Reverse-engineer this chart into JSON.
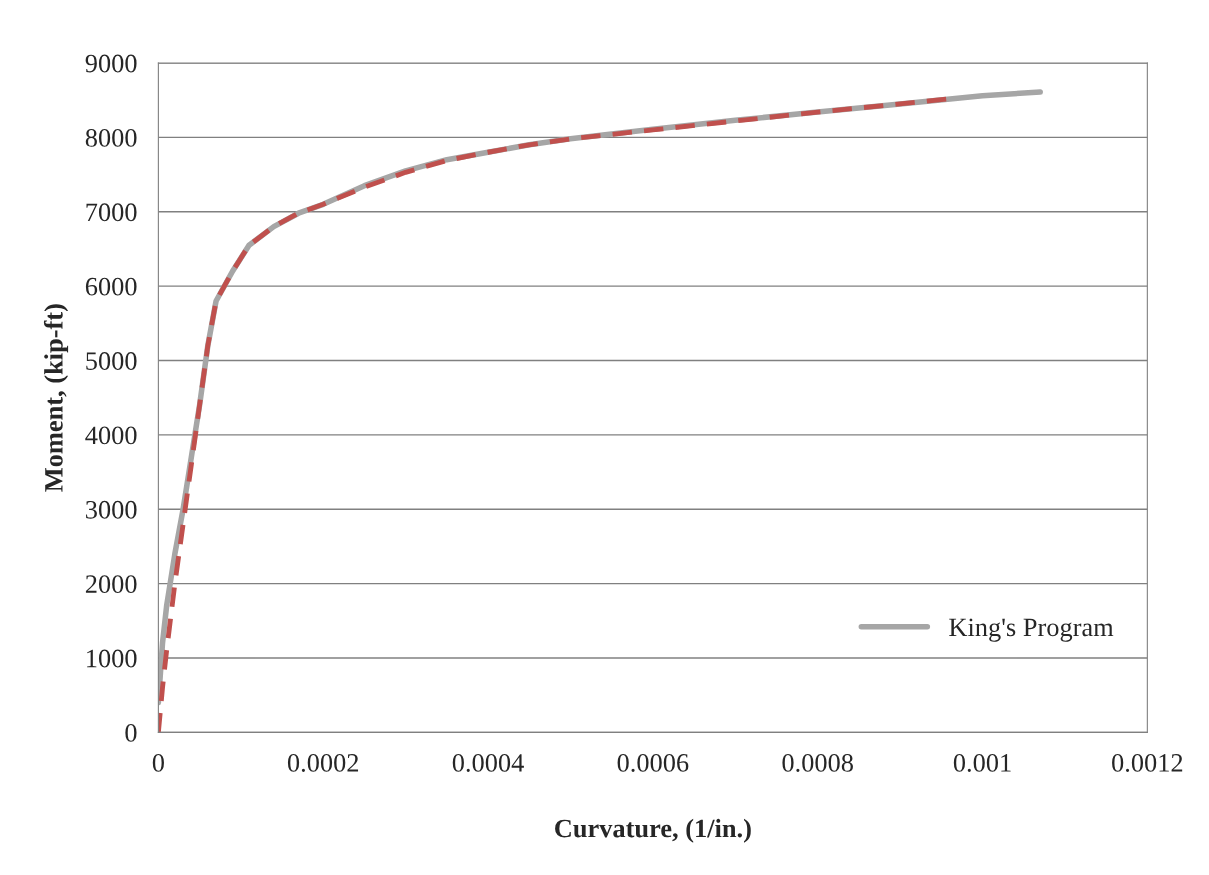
{
  "chart_data": {
    "type": "line",
    "xlabel": "Curvature, (1/in.)",
    "ylabel": "Moment, (kip-ft)",
    "xlim": [
      0,
      0.0012
    ],
    "xticks": [
      0,
      0.0002,
      0.0004,
      0.0006,
      0.0008,
      0.001,
      0.0012
    ],
    "ylim": [
      0,
      9000
    ],
    "yticks": [
      0,
      1000,
      2000,
      3000,
      4000,
      5000,
      6000,
      7000,
      8000,
      9000
    ],
    "grid": "y",
    "legend": "bottom right",
    "series": [
      {
        "name": "King's Program",
        "color": "#a6a6a6",
        "line_style": "solid",
        "x": [
          0,
          5e-06,
          1e-05,
          2e-05,
          3e-05,
          4e-05,
          5e-05,
          6e-05,
          7e-05,
          9e-05,
          0.00011,
          0.00014,
          0.00017,
          0.0002,
          0.00025,
          0.0003,
          0.00035,
          0.0004,
          0.00045,
          0.0005,
          0.0006,
          0.0007,
          0.0008,
          0.0009,
          0.001,
          0.00107
        ],
        "values": [
          400,
          1200,
          1700,
          2400,
          3000,
          3700,
          4400,
          5200,
          5800,
          6200,
          6550,
          6800,
          6980,
          7100,
          7350,
          7550,
          7700,
          7800,
          7900,
          7980,
          8110,
          8230,
          8340,
          8450,
          8560,
          8610
        ]
      },
      {
        "color": "#c0504d",
        "line_style": "dashed",
        "x": [
          0,
          5e-06,
          1e-05,
          2e-05,
          3e-05,
          4e-05,
          5e-05,
          6e-05,
          7e-05,
          9e-05,
          0.00011,
          0.00014,
          0.00017,
          0.0002,
          0.00025,
          0.0003,
          0.00035,
          0.0004,
          0.00045,
          0.0005,
          0.0006,
          0.0007,
          0.0008,
          0.0009,
          0.00096
        ],
        "values": [
          0,
          600,
          1100,
          2000,
          2800,
          3600,
          4400,
          5200,
          5800,
          6200,
          6550,
          6800,
          6980,
          7100,
          7330,
          7530,
          7690,
          7800,
          7900,
          7980,
          8100,
          8220,
          8340,
          8450,
          8520
        ]
      }
    ]
  }
}
